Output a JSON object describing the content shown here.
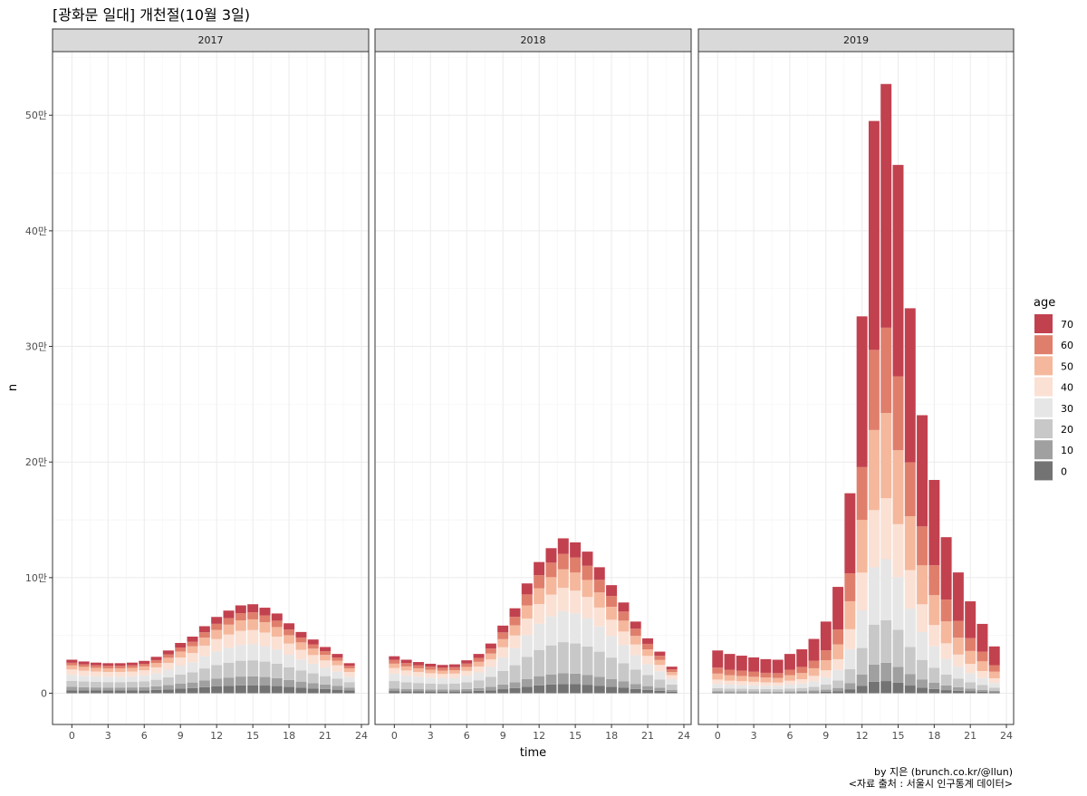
{
  "title": "[광화문 일대] 개천절(10월 3일)",
  "captions": {
    "credit": "by 지은 (brunch.co.kr/@llun)",
    "source": "<자료 출처 : 서울시 인구통계 데이터>"
  },
  "chart_data": {
    "type": "bar",
    "stacked": true,
    "facets": [
      "2017",
      "2018",
      "2019"
    ],
    "xlabel": "time",
    "ylabel": "n",
    "x_ticks": [
      0,
      3,
      6,
      9,
      12,
      15,
      18,
      21,
      24
    ],
    "x_tick_labels": [
      "0",
      "3",
      "6",
      "9",
      "12",
      "15",
      "18",
      "21",
      "24"
    ],
    "y_ticks": [
      0,
      100000,
      200000,
      300000,
      400000,
      500000
    ],
    "y_tick_labels": [
      "0",
      "10만",
      "20만",
      "30만",
      "40만",
      "50만"
    ],
    "ylim": [
      -27000,
      555000
    ],
    "xlim": [
      -1.6,
      24.6
    ],
    "grid": true,
    "legend": {
      "title": "age",
      "position": "right",
      "entries": [
        "70",
        "60",
        "50",
        "40",
        "30",
        "20",
        "10",
        "0"
      ]
    },
    "colors": {
      "0": "#737373",
      "10": "#a0a0a0",
      "20": "#c8c8c8",
      "30": "#e6e6e6",
      "40": "#fbe0d4",
      "50": "#f5b89c",
      "60": "#e07e6c",
      "70": "#c2414f"
    },
    "hours": [
      0,
      1,
      2,
      3,
      4,
      5,
      6,
      7,
      8,
      9,
      10,
      11,
      12,
      13,
      14,
      15,
      16,
      17,
      18,
      19,
      20,
      21,
      22,
      23
    ],
    "age_groups": [
      "0",
      "10",
      "20",
      "30",
      "40",
      "50",
      "60",
      "70"
    ],
    "panels": [
      {
        "year": "2017",
        "totals": [
          29000,
          27500,
          26500,
          26000,
          26000,
          26500,
          28000,
          31500,
          37000,
          43500,
          49000,
          58000,
          66000,
          71500,
          76000,
          77000,
          74000,
          69000,
          60500,
          53000,
          46500,
          40000,
          34000,
          26000
        ],
        "shares": {
          "0": 0.09,
          "10": 0.1,
          "20": 0.18,
          "30": 0.18,
          "40": 0.16,
          "50": 0.12,
          "60": 0.08,
          "70": 0.09
        }
      },
      {
        "year": "2018",
        "totals": [
          32000,
          29000,
          27000,
          25500,
          24500,
          25000,
          28500,
          34000,
          43000,
          58500,
          73500,
          95000,
          113500,
          125500,
          134000,
          130500,
          122500,
          109000,
          93500,
          78500,
          62000,
          47500,
          36000,
          23000
        ],
        "shares": {
          "0": 0.06,
          "10": 0.07,
          "20": 0.2,
          "30": 0.2,
          "40": 0.15,
          "50": 0.12,
          "60": 0.1,
          "70": 0.1
        }
      },
      {
        "year": "2019",
        "totals": [
          37000,
          34000,
          32500,
          31000,
          29500,
          29000,
          34000,
          38000,
          47000,
          62000,
          92000,
          173000,
          326000,
          495000,
          527000,
          457000,
          333000,
          240500,
          184500,
          135000,
          104500,
          79500,
          60000,
          40500
        ],
        "shares": {
          "0": 0.02,
          "10": 0.03,
          "20": 0.07,
          "30": 0.1,
          "40": 0.1,
          "50": 0.14,
          "60": 0.14,
          "70": 0.4
        }
      }
    ]
  }
}
